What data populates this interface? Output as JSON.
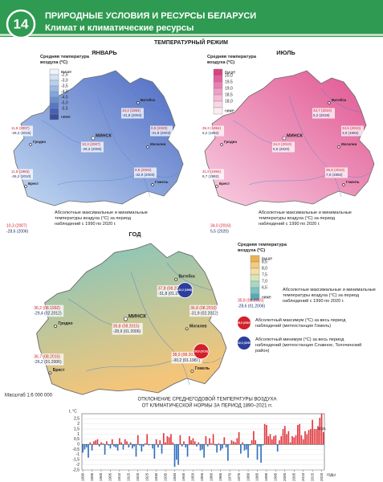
{
  "header": {
    "page_number": "14",
    "title": "ПРИРОДНЫЕ УСЛОВИЯ И РЕСУРСЫ БЕЛАРУСИ",
    "subtitle": "Климат и климатические ресурсы"
  },
  "section_title": "ТЕМПЕРАТУРНЫЙ РЕЖИМ",
  "maps": [
    {
      "title": "ЯНВАРЬ",
      "legend": {
        "title": "Средняя температура воздуха (°С)",
        "items": [
          "выше",
          "-2,5",
          "-3,0",
          "-3,5",
          "-4,0",
          "-4,5",
          "-5,0",
          "-5,5",
          "ниже"
        ],
        "colors": [
          "#eef4fb",
          "#d3e3f5",
          "#b7d0ee",
          "#9bbbe4",
          "#81a6db",
          "#6a8fd1",
          "#5877c4",
          "#4660b3",
          "#3a4fa0"
        ]
      },
      "gradient": [
        "#c3daf2",
        "#4a67c2"
      ],
      "cities": [
        "Витебск",
        "Гродно",
        "МИНСК",
        "Могилев",
        "Брест",
        "Гомель"
      ],
      "stations": [
        {
          "max": "10,4 (1984)",
          "min": "-31,8 (2003)"
        },
        {
          "max": "11,8 (2007)",
          "min": "-28,3 (2016)"
        },
        {
          "max": "10,3 (2007)",
          "min": "-28,3 (2006)"
        },
        {
          "max": "9,9 (2020)",
          "min": "-31,9 (2003)"
        },
        {
          "max": "11,8 (1983)",
          "min": "-26,2 (2010)"
        },
        {
          "max": "9,8 (2002)",
          "min": "-32,0 (2003)"
        }
      ],
      "note": {
        "max": "10,3 (2007)",
        "min": "-28,6 (2006)",
        "text": "Абсолютные максимальные и минимальные температуры воздуха (°С) за период наблюдений с 1990 по 2020 г."
      }
    },
    {
      "title": "ИЮЛЬ",
      "legend": {
        "title": "Средняя температура воздуха (°С)",
        "items": [
          "выше",
          "20,0",
          "19,5",
          "19,0",
          "18,5",
          "18,0",
          "ниже"
        ],
        "colors": [
          "#d9417f",
          "#e260a0",
          "#eb7fb3",
          "#f09fc6",
          "#f5bdd7",
          "#f9d6e6",
          "#fdecf3"
        ]
      },
      "gradient": [
        "#f8cfe2",
        "#e0528f"
      ],
      "cities": [
        "Витебск",
        "Гродно",
        "МИНСК",
        "Могилев",
        "Брест",
        "Гомель"
      ],
      "stations": [
        {
          "max": "34,7 (2010)",
          "min": "5,2 (2019)"
        },
        {
          "max": "35,3 (1994)",
          "min": "5,2 (1992)"
        },
        {
          "max": "34,0 (2010)",
          "min": "5,5 (2020)"
        },
        {
          "max": "34,5 (2010)",
          "min": "3,0 (1992)"
        },
        {
          "max": "31,8 (1994)",
          "min": "8,7 (1992)"
        },
        {
          "max": "35,9 (2010)",
          "min": "7,0 (1992)"
        }
      ],
      "note": {
        "max": "34,0 (2016)",
        "min": "5,5 (2020)",
        "text": "Абсолютные максимальные и минимальные температуры воздуха (°С) за период наблюдений с 1990 по 2020 г."
      }
    },
    {
      "title": "ГОД",
      "legend": {
        "title": "Средняя температура воздуха (°С)",
        "items": [
          "выше",
          "8,5",
          "8,0",
          "7,5",
          "7,0",
          "6,5",
          "ниже"
        ],
        "colors": [
          "#eeb04e",
          "#f4ca7e",
          "#f6dfa2",
          "#d6e7b6",
          "#a8d7c5",
          "#7cc3c1",
          "#58a8b7"
        ]
      },
      "gradient": [
        "#7fc7c0",
        "#f3c57a"
      ],
      "cities": [
        "Витебск",
        "Гродно",
        "МИНСК",
        "Могилев",
        "Брест",
        "Гомель"
      ],
      "stations": [
        {
          "max": "37,8 (08.2010)",
          "min": "-31,8 (01.2003)"
        },
        {
          "max": "36,2 (08.1992)",
          "min": "-29,4 (02.2012)"
        },
        {
          "max": "35,8 (08.2015)",
          "min": "-28,9 (01.2006)"
        },
        {
          "max": "36,8 (08.2010)",
          "min": "-31,9 (02.2012)"
        },
        {
          "max": "36,7 (08.2015)",
          "min": "-26,2 (01.2006)"
        },
        {
          "max": "38,9 (08.2010)",
          "min": "-30,2 (01.1987)"
        }
      ],
      "note": {
        "max": "35,8 (08.2015)",
        "min": "-28,6 (01.2006)",
        "text": "Абсолютные максимальные и минимальные температуры воздуха (°С) за период наблюдений с 1990 по 2020 г."
      },
      "absolute_max": "38,9 (2010)",
      "absolute_max_text": "Абсолютный максимум (°С) за весь период наблюдений (метеостанция Гомель)",
      "absolute_min": "-42,2 (1940)",
      "absolute_min_text": "Абсолютный минимум (°С) за весь период наблюдений (метеостанция Славное, Толочинский район)"
    }
  ],
  "scale": "Масштаб 1:6 000 000",
  "chart_data": {
    "type": "bar",
    "title": "ОТКЛОНЕНИЕ СРЕДНЕГОДОВОЙ ТЕМПЕРАТУРЫ ВОЗДУХА",
    "subtitle": "ОТ КЛИМАТИЧЕСКОЙ НОРМЫ ЗА ПЕРИОД 1890–2021 гг.",
    "y_label": "t, °C",
    "x_label": "годы",
    "positive_color": "#e0383e",
    "negative_color": "#2f6fbf",
    "x": [
      1890,
      1891,
      1892,
      1893,
      1894,
      1895,
      1896,
      1897,
      1898,
      1899,
      1900,
      1901,
      1902,
      1903,
      1904,
      1905,
      1906,
      1907,
      1908,
      1909,
      1910,
      1911,
      1912,
      1913,
      1914,
      1915,
      1916,
      1917,
      1918,
      1919,
      1920,
      1921,
      1922,
      1923,
      1924,
      1925,
      1926,
      1927,
      1928,
      1929,
      1930,
      1931,
      1932,
      1933,
      1934,
      1935,
      1936,
      1937,
      1938,
      1939,
      1940,
      1941,
      1942,
      1943,
      1944,
      1945,
      1946,
      1947,
      1948,
      1949,
      1950,
      1951,
      1952,
      1953,
      1954,
      1955,
      1956,
      1957,
      1958,
      1959,
      1960,
      1961,
      1962,
      1963,
      1964,
      1965,
      1966,
      1967,
      1968,
      1969,
      1970,
      1971,
      1972,
      1973,
      1974,
      1975,
      1976,
      1977,
      1978,
      1979,
      1980,
      1981,
      1982,
      1983,
      1984,
      1985,
      1986,
      1987,
      1988,
      1989,
      1990,
      1991,
      1992,
      1993,
      1994,
      1995,
      1996,
      1997,
      1998,
      1999,
      2000,
      2001,
      2002,
      2003,
      2004,
      2005,
      2006,
      2007,
      2008,
      2009,
      2010,
      2011,
      2012,
      2013,
      2014,
      2015,
      2016,
      2017,
      2018,
      2019,
      2020,
      2021
    ],
    "values": [
      -0.8,
      -0.5,
      -0.3,
      -1.3,
      0.2,
      -0.6,
      0.3,
      0.4,
      0.5,
      -0.2,
      0.2,
      0.1,
      -1.0,
      0.3,
      -0.1,
      -0.4,
      0.5,
      -0.2,
      -0.3,
      -0.6,
      0.6,
      0.2,
      -0.5,
      0.5,
      0.3,
      -0.3,
      0.2,
      -0.4,
      -0.2,
      -1.2,
      0.9,
      -0.1,
      -0.7,
      -0.2,
      0.1,
      1.0,
      -0.1,
      0.0,
      -0.4,
      -1.4,
      0.5,
      -0.3,
      0.4,
      -0.9,
      1.1,
      0.2,
      0.8,
      0.7,
      1.0,
      0.2,
      -2.2,
      -1.5,
      -2.0,
      0.9,
      -0.2,
      0.3,
      -0.3,
      -1.2,
      0.8,
      0.4,
      0.6,
      0.3,
      -0.2,
      0.2,
      -0.6,
      -0.5,
      -1.3,
      0.8,
      -0.2,
      0.6,
      0.1,
      1.0,
      -0.1,
      -0.8,
      0.1,
      -0.6,
      -0.4,
      0.7,
      -0.3,
      -1.6,
      0.0,
      0.4,
      0.3,
      0.2,
      0.6,
      1.2,
      -0.9,
      0.2,
      -0.6,
      -0.5,
      -1.3,
      -0.1,
      0.4,
      1.3,
      0.4,
      -1.5,
      -0.2,
      -1.8,
      -0.1,
      2.0,
      1.9,
      0.8,
      1.0,
      0.5,
      0.8,
      0.9,
      -0.7,
      0.4,
      0.8,
      1.5,
      1.8,
      1.0,
      1.3,
      0.2,
      0.8,
      0.7,
      0.9,
      1.9,
      2.0,
      0.9,
      0.5,
      1.3,
      1.0,
      1.4,
      1.5,
      2.4,
      1.5,
      1.5,
      1.8,
      2.6,
      3.0,
      1.2
    ],
    "xlim": [
      1889.5,
      2021.5
    ],
    "xticks": [
      1890,
      1895,
      1900,
      1905,
      1910,
      1915,
      1920,
      1925,
      1930,
      1935,
      1940,
      1945,
      1950,
      1955,
      1960,
      1965,
      1970,
      1975,
      1980,
      1985,
      1990,
      1995,
      2000,
      2005,
      2010,
      2015,
      2020
    ],
    "ylim": [
      -2.5,
      3
    ],
    "yticks": [
      {
        "value": -2.5,
        "label": "-2,5"
      },
      -2,
      {
        "value": -1.5,
        "label": "-1,5"
      },
      -1,
      {
        "value": -0.5,
        "label": "-0,5"
      },
      0,
      {
        "value": 0.5,
        "label": "0,5"
      },
      1,
      {
        "value": 1.5,
        "label": "1,5"
      },
      2,
      {
        "value": 2.5,
        "label": "2,5"
      }
    ],
    "grid": true
  }
}
